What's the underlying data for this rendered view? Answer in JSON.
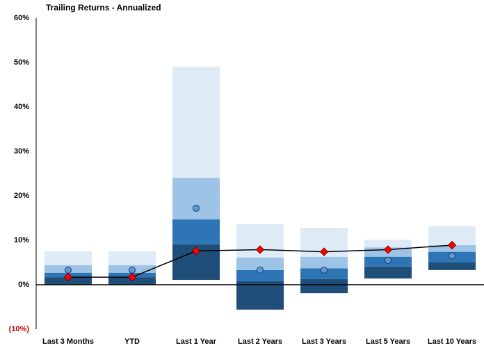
{
  "chart_data": {
    "type": "range-bar",
    "title": "Trailing Returns - Annualized",
    "categories": [
      "Last 3 Months",
      "YTD",
      "Last 1 Year",
      "Last 2 Years",
      "Last 3 Years",
      "Last 5 Years",
      "Last 10 Years"
    ],
    "ranges": [
      [
        0,
        1.7,
        2.7,
        4.4,
        7.5
      ],
      [
        0,
        1.7,
        2.7,
        4.4,
        7.5
      ],
      [
        1.1,
        9.1,
        14.7,
        24.1,
        49
      ],
      [
        -5.6,
        0.8,
        3.3,
        6.1,
        13.6
      ],
      [
        -1.9,
        1.3,
        3.7,
        6.3,
        12.8
      ],
      [
        1.4,
        4.1,
        6.3,
        8.4,
        10.1
      ],
      [
        3.3,
        5.0,
        7.4,
        8.9,
        13.2
      ]
    ],
    "range_colors": [
      "#1f4e79",
      "#2e75b6",
      "#9dc3e6",
      "#deebf7"
    ],
    "markers": [
      {
        "marker": "circle",
        "color": "#5b9bd5",
        "values": [
          3.3,
          3.3,
          17.2,
          3.3,
          3.3,
          5.5,
          6.5
        ]
      },
      {
        "marker": "diamond",
        "color": "#ff0000",
        "line": true,
        "values": [
          1.7,
          1.7,
          7.6,
          7.9,
          7.4,
          7.9,
          8.9
        ]
      }
    ],
    "ylim": [
      -10,
      60
    ],
    "yticks": [
      {
        "value": -10,
        "label": "(10%)"
      },
      {
        "value": 0,
        "label": "0%"
      },
      {
        "value": 10,
        "label": "10%"
      },
      {
        "value": 20,
        "label": "20%"
      },
      {
        "value": 30,
        "label": "30%"
      },
      {
        "value": 40,
        "label": "40%"
      },
      {
        "value": 50,
        "label": "50%"
      },
      {
        "value": 60,
        "label": "60%"
      }
    ],
    "negative_label_color": "#c00000"
  }
}
